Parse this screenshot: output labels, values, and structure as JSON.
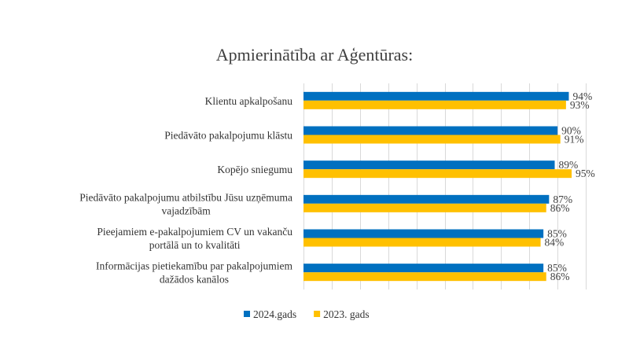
{
  "chart_data": {
    "type": "bar",
    "orientation": "horizontal",
    "title": "Apmierinātība ar Aģentūras:",
    "categories": [
      [
        "Klientu apkalpošanu"
      ],
      [
        "Piedāvāto pakalpojumu klāstu"
      ],
      [
        "Kopējo sniegumu"
      ],
      [
        "Piedāvāto pakalpojumu atbilstību Jūsu uzņēmuma",
        "vajadzībām"
      ],
      [
        "Pieejamiem  e-pakalpojumiem CV un vakanču",
        "portālā un to kvalitāti"
      ],
      [
        "Informācijas pietiekamību par pakalpojumiem",
        "dažādos kanālos"
      ]
    ],
    "series": [
      {
        "name": "2024.gads",
        "color": "#0070C0",
        "values": [
          94,
          90,
          89,
          87,
          85,
          85
        ]
      },
      {
        "name": "2023. gads",
        "color": "#FFC000",
        "values": [
          93,
          91,
          95,
          86,
          84,
          86
        ]
      }
    ],
    "value_suffix": "%",
    "xlim": [
      0,
      100
    ],
    "grid": true,
    "legend_position": "bottom",
    "xlabel": "",
    "ylabel": ""
  }
}
